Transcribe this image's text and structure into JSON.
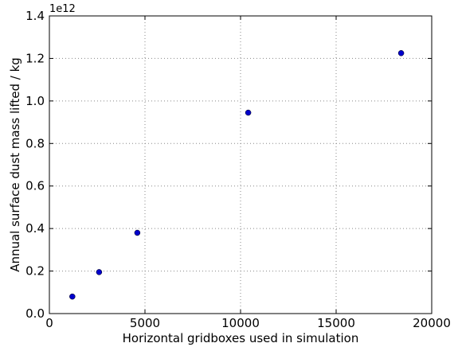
{
  "chart_data": {
    "type": "scatter",
    "title": "",
    "xlabel": "Horizontal gridboxes used in simulation",
    "ylabel": "Annual surface dust mass lifted / kg",
    "y_offset_label": "1e12",
    "xlim": [
      0,
      20000
    ],
    "ylim": [
      0,
      1.4
    ],
    "x_ticks": [
      0,
      5000,
      10000,
      15000,
      20000
    ],
    "x_tick_labels": [
      "0",
      "5000",
      "10000",
      "15000",
      "20000"
    ],
    "y_ticks": [
      0,
      0.2,
      0.4,
      0.6,
      0.8,
      1.0,
      1.2,
      1.4
    ],
    "y_tick_labels": [
      "0.0",
      "0.2",
      "0.4",
      "0.6",
      "0.8",
      "1.0",
      "1.2",
      "1.4"
    ],
    "grid": true,
    "marker_color": "#0000cc",
    "series": [
      {
        "x": [
          1200,
          2600,
          4600,
          10400,
          18400
        ],
        "y": [
          0.08,
          0.195,
          0.38,
          0.945,
          1.225
        ]
      }
    ]
  }
}
